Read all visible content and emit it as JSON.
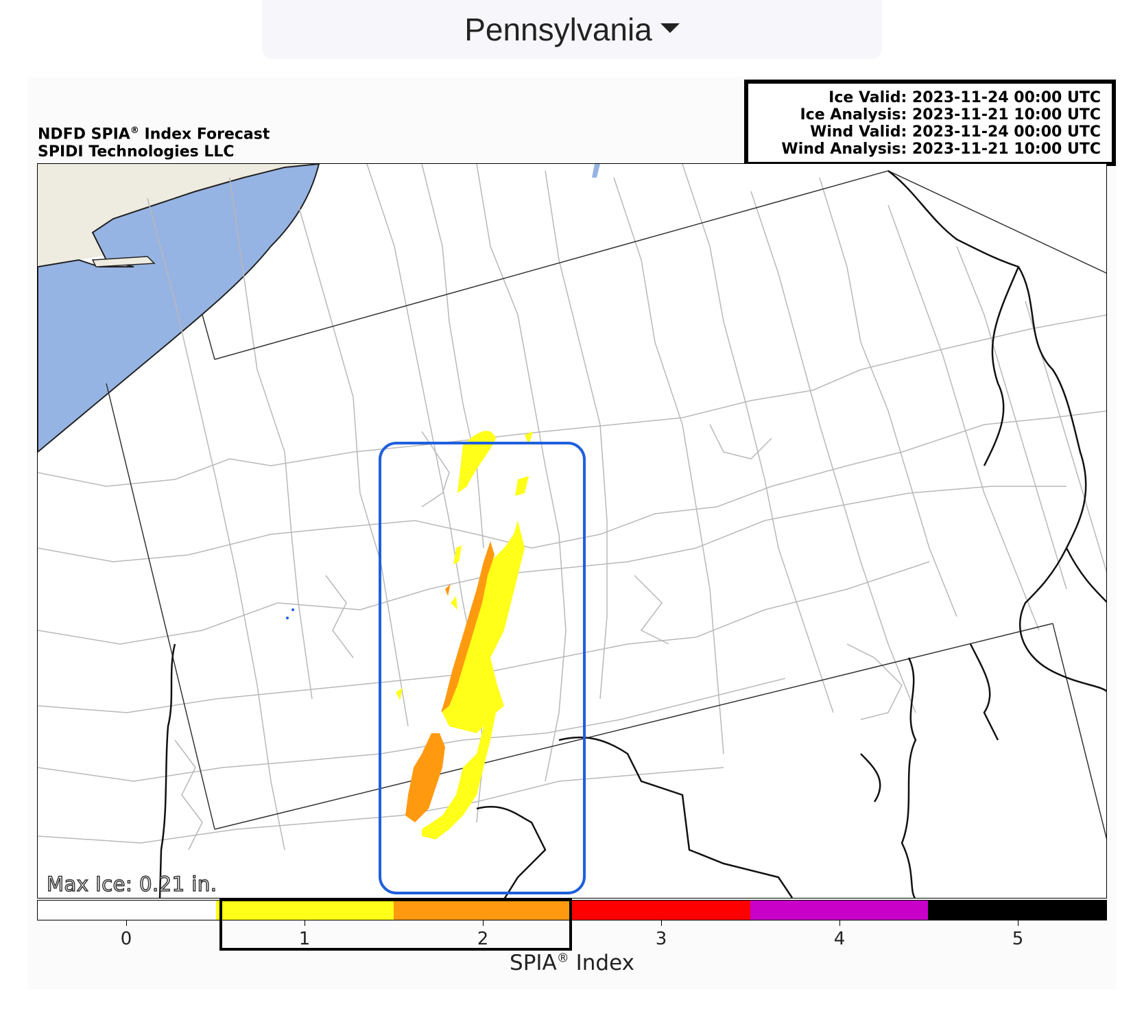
{
  "state_selector": {
    "label": "Pennsylvania",
    "icon": "caret-down-icon"
  },
  "title": {
    "line1": "NDFD SPIA",
    "reg": "®",
    "line1_suffix": " Index Forecast",
    "line2": "SPIDI Technologies LLC"
  },
  "valid_times": {
    "ice_valid": "Ice Valid: 2023-11-24 00:00 UTC",
    "ice_analysis": "Ice Analysis: 2023-11-21 10:00 UTC",
    "wind_valid": "Wind Valid: 2023-11-24 00:00 UTC",
    "wind_analysis": "Wind Analysis: 2023-11-21 10:00 UTC"
  },
  "map": {
    "max_ice": "Max Ice: 0.21 in.",
    "colors": {
      "water": "#96b4e3",
      "land_outside": "#eeece0",
      "county_line": "#b8b8b8",
      "border": "#222222",
      "ice_index_1": "#ffff1a",
      "ice_index_2": "#ff9a10"
    }
  },
  "colorbar": {
    "label": "SPIA",
    "reg": "®",
    "label_suffix": " Index",
    "ticks": [
      "0",
      "1",
      "2",
      "3",
      "4",
      "5"
    ],
    "levels": [
      {
        "index": 0,
        "color": "#ffffff"
      },
      {
        "index": 1,
        "color": "#ffff1a"
      },
      {
        "index": 2,
        "color": "#ff9a10"
      },
      {
        "index": 3,
        "color": "#ff0000"
      },
      {
        "index": 4,
        "color": "#c800c8"
      },
      {
        "index": 5,
        "color": "#000000"
      }
    ]
  }
}
